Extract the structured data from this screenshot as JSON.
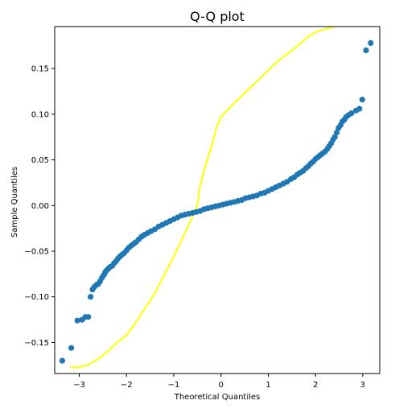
{
  "chart_data": {
    "type": "scatter",
    "title": "Q-Q plot",
    "xlabel": "Theoretical Quantiles",
    "ylabel": "Sample Quantiles",
    "xlim": [
      -3.52,
      3.36
    ],
    "ylim": [
      -0.184,
      0.196
    ],
    "x_ticks": [
      -3,
      -2,
      -1,
      0,
      1,
      2,
      3
    ],
    "x_tick_labels": [
      "−3",
      "−2",
      "−1",
      "0",
      "1",
      "2",
      "3"
    ],
    "y_ticks": [
      -0.15,
      -0.1,
      -0.05,
      0.0,
      0.05,
      0.1,
      0.15
    ],
    "y_tick_labels": [
      "−0.15",
      "−0.10",
      "−0.05",
      "0.00",
      "0.05",
      "0.10",
      "0.15"
    ],
    "grid": false,
    "marker_color": "#1f77b4",
    "curve_color": "#ffff00",
    "points": [
      [
        -3.36,
        -0.17
      ],
      [
        -3.17,
        -0.156
      ],
      [
        -3.04,
        -0.126
      ],
      [
        -2.94,
        -0.125
      ],
      [
        -2.87,
        -0.122
      ],
      [
        -2.81,
        -0.122
      ],
      [
        -2.76,
        -0.1
      ],
      [
        -2.72,
        -0.092
      ],
      [
        -2.68,
        -0.089
      ],
      [
        -2.64,
        -0.087
      ],
      [
        -2.6,
        -0.086
      ],
      [
        -2.56,
        -0.083
      ],
      [
        -2.52,
        -0.079
      ],
      [
        -2.48,
        -0.076
      ],
      [
        -2.45,
        -0.073
      ],
      [
        -2.42,
        -0.071
      ],
      [
        -2.38,
        -0.069
      ],
      [
        -2.34,
        -0.067
      ],
      [
        -2.3,
        -0.066
      ],
      [
        -2.26,
        -0.063
      ],
      [
        -2.22,
        -0.061
      ],
      [
        -2.18,
        -0.058
      ],
      [
        -2.14,
        -0.056
      ],
      [
        -2.1,
        -0.054
      ],
      [
        -2.05,
        -0.052
      ],
      [
        -2.0,
        -0.049
      ],
      [
        -1.95,
        -0.046
      ],
      [
        -1.9,
        -0.044
      ],
      [
        -1.85,
        -0.042
      ],
      [
        -1.8,
        -0.04
      ],
      [
        -1.74,
        -0.037
      ],
      [
        -1.68,
        -0.034
      ],
      [
        -1.62,
        -0.032
      ],
      [
        -1.55,
        -0.03
      ],
      [
        -1.48,
        -0.028
      ],
      [
        -1.4,
        -0.026
      ],
      [
        -1.32,
        -0.023
      ],
      [
        -1.24,
        -0.021
      ],
      [
        -1.16,
        -0.019
      ],
      [
        -1.08,
        -0.017
      ],
      [
        -1.0,
        -0.015
      ],
      [
        -0.92,
        -0.013
      ],
      [
        -0.84,
        -0.011
      ],
      [
        -0.76,
        -0.01
      ],
      [
        -0.68,
        -0.009
      ],
      [
        -0.6,
        -0.008
      ],
      [
        -0.52,
        -0.007
      ],
      [
        -0.44,
        -0.006
      ],
      [
        -0.36,
        -0.004
      ],
      [
        -0.28,
        -0.003
      ],
      [
        -0.2,
        -0.002
      ],
      [
        -0.12,
        -0.001
      ],
      [
        -0.04,
        0.0
      ],
      [
        0.04,
        0.001
      ],
      [
        0.12,
        0.002
      ],
      [
        0.2,
        0.003
      ],
      [
        0.28,
        0.004
      ],
      [
        0.36,
        0.005
      ],
      [
        0.44,
        0.006
      ],
      [
        0.52,
        0.008
      ],
      [
        0.6,
        0.009
      ],
      [
        0.68,
        0.01
      ],
      [
        0.76,
        0.011
      ],
      [
        0.84,
        0.013
      ],
      [
        0.92,
        0.014
      ],
      [
        1.0,
        0.016
      ],
      [
        1.08,
        0.018
      ],
      [
        1.16,
        0.02
      ],
      [
        1.24,
        0.022
      ],
      [
        1.32,
        0.024
      ],
      [
        1.4,
        0.026
      ],
      [
        1.48,
        0.029
      ],
      [
        1.55,
        0.031
      ],
      [
        1.62,
        0.034
      ],
      [
        1.68,
        0.036
      ],
      [
        1.74,
        0.038
      ],
      [
        1.8,
        0.041
      ],
      [
        1.85,
        0.043
      ],
      [
        1.9,
        0.046
      ],
      [
        1.95,
        0.048
      ],
      [
        2.0,
        0.051
      ],
      [
        2.05,
        0.053
      ],
      [
        2.1,
        0.055
      ],
      [
        2.15,
        0.057
      ],
      [
        2.2,
        0.059
      ],
      [
        2.25,
        0.062
      ],
      [
        2.29,
        0.065
      ],
      [
        2.33,
        0.068
      ],
      [
        2.37,
        0.072
      ],
      [
        2.41,
        0.075
      ],
      [
        2.45,
        0.08
      ],
      [
        2.49,
        0.085
      ],
      [
        2.53,
        0.088
      ],
      [
        2.57,
        0.092
      ],
      [
        2.61,
        0.094
      ],
      [
        2.65,
        0.097
      ],
      [
        2.7,
        0.099
      ],
      [
        2.76,
        0.101
      ],
      [
        2.86,
        0.104
      ],
      [
        2.93,
        0.106
      ],
      [
        2.99,
        0.116
      ],
      [
        3.07,
        0.17
      ],
      [
        3.17,
        0.178
      ]
    ],
    "curve": [
      [
        -3.2,
        -0.177
      ],
      [
        -3.0,
        -0.177
      ],
      [
        -2.8,
        -0.174
      ],
      [
        -2.6,
        -0.168
      ],
      [
        -2.4,
        -0.16
      ],
      [
        -2.2,
        -0.15
      ],
      [
        -2.0,
        -0.142
      ],
      [
        -1.8,
        -0.128
      ],
      [
        -1.6,
        -0.112
      ],
      [
        -1.4,
        -0.096
      ],
      [
        -1.2,
        -0.076
      ],
      [
        -1.0,
        -0.056
      ],
      [
        -0.8,
        -0.034
      ],
      [
        -0.6,
        -0.012
      ],
      [
        -0.5,
        0.0
      ],
      [
        -0.45,
        0.02
      ],
      [
        -0.35,
        0.04
      ],
      [
        -0.2,
        0.065
      ],
      [
        -0.1,
        0.085
      ],
      [
        0.0,
        0.097
      ],
      [
        0.2,
        0.108
      ],
      [
        0.4,
        0.118
      ],
      [
        0.6,
        0.128
      ],
      [
        0.8,
        0.138
      ],
      [
        1.0,
        0.148
      ],
      [
        1.2,
        0.158
      ],
      [
        1.4,
        0.166
      ],
      [
        1.6,
        0.174
      ],
      [
        1.8,
        0.183
      ],
      [
        2.0,
        0.19
      ],
      [
        2.2,
        0.193
      ],
      [
        2.4,
        0.196
      ],
      [
        2.6,
        0.198
      ],
      [
        2.8,
        0.199
      ],
      [
        3.0,
        0.199
      ],
      [
        3.1,
        0.199
      ]
    ]
  }
}
